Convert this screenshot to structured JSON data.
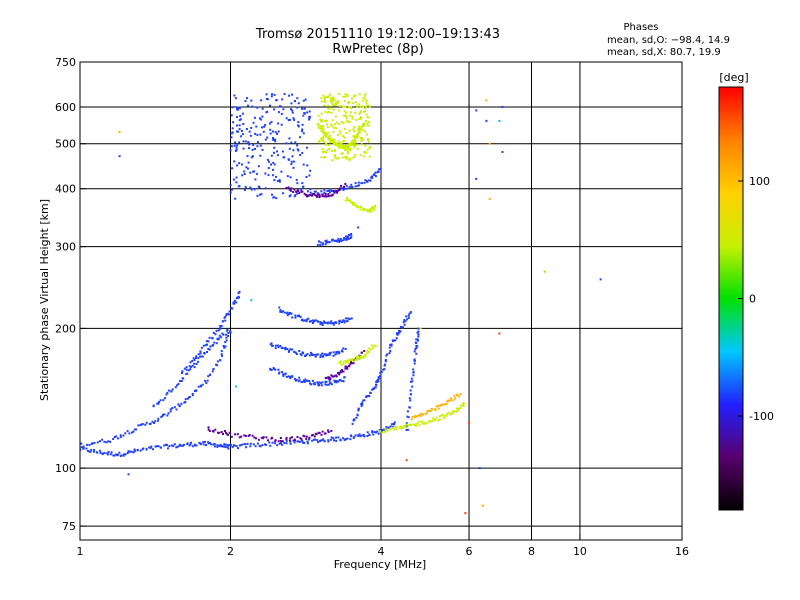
{
  "chart_data": {
    "type": "scatter",
    "title": "Tromsø 20151110 19:12:00–19:13:43",
    "subtitle": "RwPretec (8p)",
    "xlabel": "Frequency [MHz]",
    "ylabel": "Stationary phase Virtual Height [km]",
    "x_scale": "log",
    "y_scale": "log",
    "xlim": [
      1,
      16
    ],
    "ylim": [
      70,
      750
    ],
    "x_ticks": [
      "1",
      "2",
      "4",
      "6",
      "8",
      "10",
      "16"
    ],
    "y_ticks": [
      "75",
      "100",
      "200",
      "300",
      "400",
      "500",
      "600",
      "750"
    ],
    "grid": true,
    "legend_title": "Phases",
    "legend_lines": [
      "mean, sd,O: −98.4, 14.9",
      "mean, sd,X:  80.7, 19.9"
    ],
    "colorbar": {
      "label": "[deg]",
      "ticks": [
        "100",
        "0",
        "-100"
      ],
      "range": [
        -180,
        180
      ],
      "colormap": [
        "#000000",
        "#5a006e",
        "#2020ff",
        "#00c8ff",
        "#00e000",
        "#c8f000",
        "#ffd000",
        "#ff8000",
        "#ff0000"
      ]
    },
    "series": [
      {
        "color": "#2040ff",
        "traces": [
          {
            "x": [
              1.0,
              1.1,
              1.2,
              1.3,
              1.45,
              1.6,
              1.75,
              1.9,
              2.0,
              2.2,
              2.5,
              2.8,
              3.1,
              3.4,
              3.7,
              4.0,
              4.3
            ],
            "y": [
              110,
              108,
              107,
              109,
              111,
              112,
              113,
              112,
              111,
              112,
              113,
              114,
              115,
              116,
              118,
              120,
              125
            ]
          },
          {
            "x": [
              1.0,
              1.15,
              1.3,
              1.45,
              1.6,
              1.75,
              1.9,
              2.0
            ],
            "y": [
              112,
              115,
              122,
              128,
              138,
              150,
              170,
              200
            ]
          },
          {
            "x": [
              1.4,
              1.55,
              1.7,
              1.85,
              2.0
            ],
            "y": [
              135,
              150,
              168,
              185,
              200
            ]
          },
          {
            "x": [
              1.6,
              1.75,
              1.9,
              2.0,
              2.1
            ],
            "y": [
              160,
              180,
              200,
              220,
              240
            ]
          },
          {
            "x": [
              2.5,
              2.7,
              2.9,
              3.1,
              3.3,
              3.5
            ],
            "y": [
              220,
              212,
              207,
              205,
              206,
              210
            ]
          },
          {
            "x": [
              2.4,
              2.6,
              2.8,
              3.0,
              3.2,
              3.4
            ],
            "y": [
              185,
              180,
              176,
              175,
              176,
              180
            ]
          },
          {
            "x": [
              2.4,
              2.6,
              2.8,
              3.0,
              3.2,
              3.4
            ],
            "y": [
              165,
              158,
              154,
              152,
              153,
              156
            ]
          },
          {
            "x": [
              2.9,
              3.2,
              3.5,
              3.8,
              4.0
            ],
            "y": [
              390,
              395,
              405,
              420,
              440
            ]
          },
          {
            "x": [
              3.5,
              3.7,
              3.9,
              4.0,
              4.2,
              4.4,
              4.6
            ],
            "y": [
              125,
              140,
              150,
              160,
              185,
              200,
              220
            ]
          },
          {
            "x": [
              4.5,
              4.6,
              4.7,
              4.75
            ],
            "y": [
              120,
              150,
              180,
              200
            ]
          },
          {
            "x": [
              3.0,
              3.2,
              3.4,
              3.5
            ],
            "y": [
              305,
              308,
              312,
              318
            ]
          }
        ],
        "points": [
          {
            "x": 1.2,
            "y": 470
          },
          {
            "x": 1.25,
            "y": 97
          },
          {
            "x": 6.2,
            "y": 420
          },
          {
            "x": 6.2,
            "y": 590
          },
          {
            "x": 7.0,
            "y": 600
          },
          {
            "x": 7.0,
            "y": 480
          },
          {
            "x": 11.0,
            "y": 255
          },
          {
            "x": 6.5,
            "y": 560
          },
          {
            "x": 6.3,
            "y": 100
          },
          {
            "x": 3.6,
            "y": 330
          }
        ],
        "cluster": {
          "x_range": [
            2.0,
            2.9
          ],
          "y_range": [
            380,
            640
          ]
        }
      },
      {
        "color": "#5a00a0",
        "traces": [
          {
            "x": [
              1.8,
              2.0,
              2.3,
              2.6,
              2.9,
              3.2
            ],
            "y": [
              122,
              118,
              116,
              115,
              117,
              120
            ]
          },
          {
            "x": [
              2.6,
              2.8,
              3.0,
              3.2,
              3.4
            ],
            "y": [
              400,
              390,
              385,
              390,
              410
            ]
          },
          {
            "x": [
              3.1,
              3.3,
              3.5,
              3.7
            ],
            "y": [
              155,
              160,
              168,
              178
            ]
          }
        ],
        "points": []
      },
      {
        "color": "#c8f000",
        "traces": [
          {
            "x": [
              3.0,
              3.1,
              3.2,
              3.3,
              3.4,
              3.5,
              3.6,
              3.7
            ],
            "y": [
              550,
              520,
              505,
              495,
              490,
              500,
              520,
              560
            ]
          },
          {
            "x": [
              3.4,
              3.6,
              3.8,
              3.9
            ],
            "y": [
              380,
              365,
              360,
              365
            ]
          },
          {
            "x": [
              4.0,
              4.4,
              4.8,
              5.2,
              5.6,
              5.9
            ],
            "y": [
              120,
              122,
              125,
              128,
              132,
              138
            ]
          },
          {
            "x": [
              3.3,
              3.5,
              3.7,
              3.9
            ],
            "y": [
              168,
              170,
              175,
              185
            ]
          }
        ],
        "points": [
          {
            "x": 3.2,
            "y": 620
          },
          {
            "x": 3.3,
            "y": 640
          },
          {
            "x": 4.8,
            "y": 200
          }
        ],
        "cluster": {
          "x_range": [
            3.0,
            3.8
          ],
          "y_range": [
            460,
            640
          ]
        }
      },
      {
        "color": "#ffb000",
        "traces": [
          {
            "x": [
              4.6,
              5.0,
              5.4,
              5.8
            ],
            "y": [
              128,
              132,
              138,
              145
            ]
          }
        ],
        "points": [
          {
            "x": 6.5,
            "y": 620
          },
          {
            "x": 6.6,
            "y": 500
          },
          {
            "x": 6.6,
            "y": 380
          },
          {
            "x": 8.5,
            "y": 265
          },
          {
            "x": 1.2,
            "y": 530
          },
          {
            "x": 6.4,
            "y": 83
          }
        ]
      },
      {
        "color": "#ff4000",
        "traces": [],
        "points": [
          {
            "x": 4.5,
            "y": 104
          },
          {
            "x": 5.9,
            "y": 80
          },
          {
            "x": 6.0,
            "y": 125
          },
          {
            "x": 6.9,
            "y": 195
          }
        ]
      },
      {
        "color": "#00c8c8",
        "traces": [],
        "points": [
          {
            "x": 2.05,
            "y": 150
          },
          {
            "x": 2.2,
            "y": 230
          },
          {
            "x": 6.9,
            "y": 560
          }
        ]
      }
    ]
  }
}
